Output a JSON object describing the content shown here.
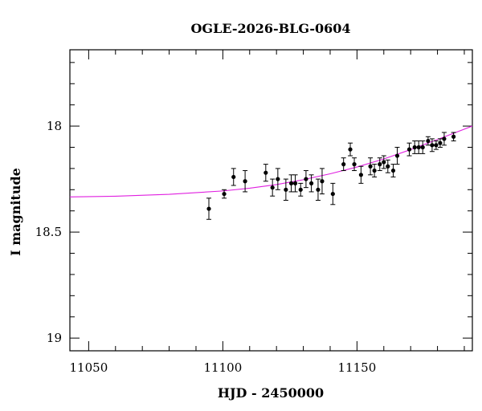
{
  "chart_data": {
    "type": "scatter",
    "title": "OGLE-2026-BLG-0604",
    "xlabel": "HJD - 2450000",
    "ylabel": "I magnitude",
    "xlim": [
      11043,
      11193
    ],
    "ylim": [
      19.06,
      17.64
    ],
    "y_inverted": true,
    "grid": false,
    "x_major_ticks": [
      11050,
      11100,
      11150
    ],
    "x_minor_step": 10,
    "y_major_ticks": [
      18,
      18.5,
      19
    ],
    "y_minor_step": 0.1,
    "x_tick_labels": [
      "11050",
      "11100",
      "11150"
    ],
    "y_tick_labels": [
      "18",
      "18.5",
      "19"
    ],
    "colors": {
      "points": "#000000",
      "model": "#e020e0",
      "axes": "#000000"
    },
    "series": [
      {
        "type": "scatter",
        "points": [
          {
            "x": 11094.8,
            "y": 18.39,
            "err": 0.05
          },
          {
            "x": 11100.5,
            "y": 18.32,
            "err": 0.02
          },
          {
            "x": 11104.0,
            "y": 18.24,
            "err": 0.04
          },
          {
            "x": 11108.3,
            "y": 18.26,
            "err": 0.05
          },
          {
            "x": 11116.0,
            "y": 18.22,
            "err": 0.04
          },
          {
            "x": 11118.5,
            "y": 18.29,
            "err": 0.04
          },
          {
            "x": 11120.5,
            "y": 18.25,
            "err": 0.05
          },
          {
            "x": 11123.5,
            "y": 18.3,
            "err": 0.05
          },
          {
            "x": 11125.5,
            "y": 18.27,
            "err": 0.04
          },
          {
            "x": 11127.0,
            "y": 18.27,
            "err": 0.04
          },
          {
            "x": 11129.0,
            "y": 18.3,
            "err": 0.03
          },
          {
            "x": 11131.0,
            "y": 18.25,
            "err": 0.04
          },
          {
            "x": 11133.0,
            "y": 18.27,
            "err": 0.04
          },
          {
            "x": 11135.5,
            "y": 18.3,
            "err": 0.05
          },
          {
            "x": 11137.0,
            "y": 18.26,
            "err": 0.06
          },
          {
            "x": 11141.0,
            "y": 18.32,
            "err": 0.05
          },
          {
            "x": 11145.0,
            "y": 18.18,
            "err": 0.03
          },
          {
            "x": 11147.5,
            "y": 18.11,
            "err": 0.03
          },
          {
            "x": 11149.0,
            "y": 18.18,
            "err": 0.03
          },
          {
            "x": 11151.5,
            "y": 18.23,
            "err": 0.04
          },
          {
            "x": 11155.0,
            "y": 18.19,
            "err": 0.04
          },
          {
            "x": 11156.5,
            "y": 18.21,
            "err": 0.03
          },
          {
            "x": 11158.5,
            "y": 18.18,
            "err": 0.03
          },
          {
            "x": 11160.0,
            "y": 18.17,
            "err": 0.03
          },
          {
            "x": 11161.5,
            "y": 18.19,
            "err": 0.03
          },
          {
            "x": 11163.5,
            "y": 18.21,
            "err": 0.03
          },
          {
            "x": 11165.0,
            "y": 18.14,
            "err": 0.04
          },
          {
            "x": 11169.5,
            "y": 18.11,
            "err": 0.03
          },
          {
            "x": 11171.5,
            "y": 18.1,
            "err": 0.03
          },
          {
            "x": 11173.0,
            "y": 18.1,
            "err": 0.03
          },
          {
            "x": 11174.5,
            "y": 18.1,
            "err": 0.03
          },
          {
            "x": 11176.5,
            "y": 18.07,
            "err": 0.02
          },
          {
            "x": 11178.0,
            "y": 18.09,
            "err": 0.03
          },
          {
            "x": 11179.5,
            "y": 18.09,
            "err": 0.02
          },
          {
            "x": 11181.0,
            "y": 18.08,
            "err": 0.02
          },
          {
            "x": 11182.5,
            "y": 18.06,
            "err": 0.03
          },
          {
            "x": 11186.0,
            "y": 18.05,
            "err": 0.02
          }
        ]
      },
      {
        "type": "line",
        "points": [
          {
            "x": 11043,
            "y": 18.334
          },
          {
            "x": 11060,
            "y": 18.331
          },
          {
            "x": 11080,
            "y": 18.322
          },
          {
            "x": 11100,
            "y": 18.306
          },
          {
            "x": 11110,
            "y": 18.293
          },
          {
            "x": 11120,
            "y": 18.276
          },
          {
            "x": 11130,
            "y": 18.253
          },
          {
            "x": 11140,
            "y": 18.225
          },
          {
            "x": 11150,
            "y": 18.193
          },
          {
            "x": 11160,
            "y": 18.155
          },
          {
            "x": 11170,
            "y": 18.111
          },
          {
            "x": 11180,
            "y": 18.063
          },
          {
            "x": 11193,
            "y": 18.0
          }
        ]
      }
    ]
  }
}
